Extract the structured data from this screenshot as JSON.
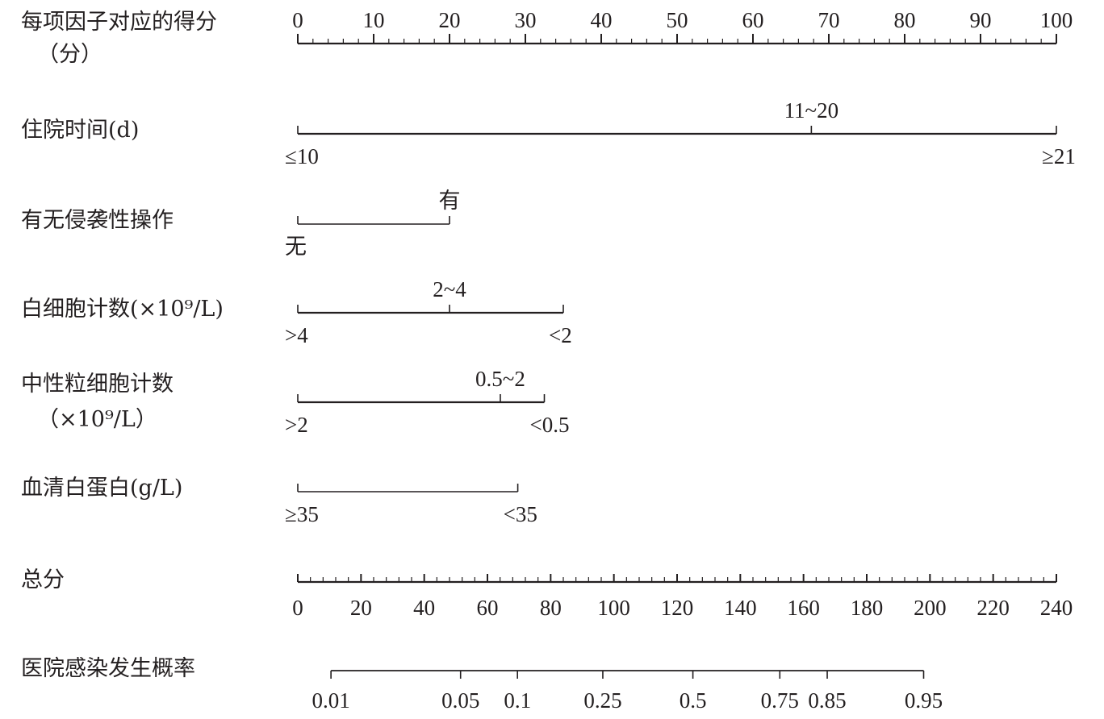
{
  "colors": {
    "ink": "#231f20",
    "background": "#ffffff"
  },
  "chart_data": {
    "type": "nomogram",
    "points_scale": {
      "label_lines": [
        "每项因子对应的得分",
        "（分）"
      ],
      "min": 0,
      "max": 100,
      "major_ticks": [
        0,
        10,
        20,
        30,
        40,
        50,
        60,
        70,
        80,
        90,
        100
      ],
      "minor_step": 2
    },
    "predictors": [
      {
        "label_lines": [
          "住院时间(d)"
        ],
        "levels": [
          {
            "label": "≤10",
            "points": 0,
            "label_side": "below"
          },
          {
            "label": "11~20",
            "points": 67.7,
            "label_side": "above"
          },
          {
            "label": "≥21",
            "points": 100,
            "label_side": "below"
          }
        ]
      },
      {
        "label_lines": [
          "有无侵袭性操作"
        ],
        "levels": [
          {
            "label": "无",
            "points": 0,
            "label_side": "below"
          },
          {
            "label": "有",
            "points": 20,
            "label_side": "above"
          }
        ]
      },
      {
        "label_lines": [
          "白细胞计数(×10⁹/L)"
        ],
        "levels": [
          {
            "label": ">4",
            "points": 0,
            "label_side": "below"
          },
          {
            "label": "2~4",
            "points": 20,
            "label_side": "above"
          },
          {
            "label": "<2",
            "points": 35,
            "label_side": "below"
          }
        ]
      },
      {
        "label_lines": [
          "中性粒细胞计数",
          "（×10⁹/L）"
        ],
        "levels": [
          {
            "label": ">2",
            "points": 0,
            "label_side": "below"
          },
          {
            "label": "0.5~2",
            "points": 26.7,
            "label_side": "above"
          },
          {
            "label": "<0.5",
            "points": 32.5,
            "label_side": "below"
          }
        ]
      },
      {
        "label_lines": [
          "血清白蛋白(g/L)"
        ],
        "levels": [
          {
            "label": "≥35",
            "points": 0,
            "label_side": "below"
          },
          {
            "label": "<35",
            "points": 29,
            "label_side": "below"
          }
        ]
      }
    ],
    "total_points": {
      "label_lines": [
        "总分"
      ],
      "min": 0,
      "max": 240,
      "major_ticks": [
        0,
        20,
        40,
        60,
        80,
        100,
        120,
        140,
        160,
        180,
        200,
        220,
        240
      ],
      "minor_step": 4
    },
    "probability": {
      "label_lines": [
        "医院感染发生概率"
      ],
      "ticks": [
        {
          "label": "0.01",
          "total_points": 10.5
        },
        {
          "label": "0.05",
          "total_points": 51.5
        },
        {
          "label": "0.1",
          "total_points": 69.5
        },
        {
          "label": "0.25",
          "total_points": 96.5
        },
        {
          "label": "0.5",
          "total_points": 125
        },
        {
          "label": "0.75",
          "total_points": 152.5
        },
        {
          "label": "0.85",
          "total_points": 167.5
        },
        {
          "label": "0.95",
          "total_points": 198
        }
      ]
    }
  }
}
